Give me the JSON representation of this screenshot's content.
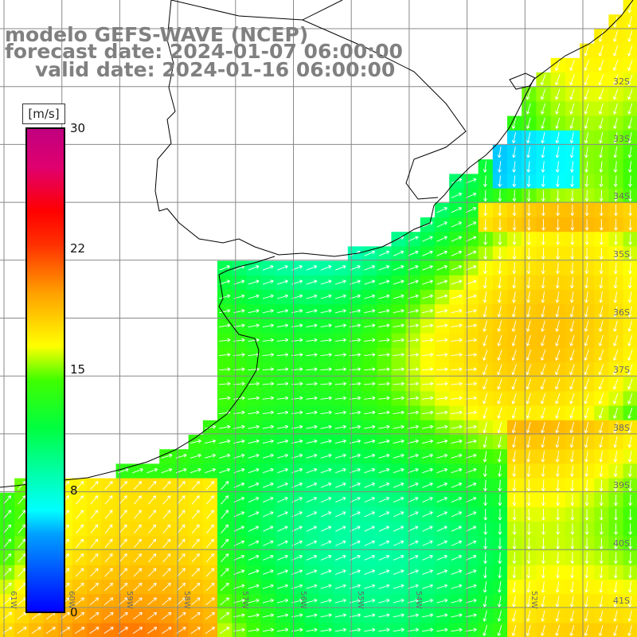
{
  "title": {
    "line1": "modelo GEFS-WAVE (NCEP)",
    "line2": "forecast date: 2024-01-07 06:00:00",
    "line3": "valid date: 2024-01-16 06:00:00"
  },
  "colorbar": {
    "unit": "[m/s]",
    "ticks": [
      "30",
      "22",
      "15",
      "8",
      "0"
    ],
    "tick_values": [
      30,
      22,
      15,
      8,
      0
    ],
    "colors": [
      "#0000ff",
      "#00a0ff",
      "#00ffff",
      "#00ff40",
      "#40ff00",
      "#ffff00",
      "#ffa000",
      "#ff3000",
      "#ff0000",
      "#e0006e",
      "#c00080"
    ]
  },
  "axes": {
    "lat_labels": [
      "32S",
      "33S",
      "34S",
      "35S",
      "36S",
      "37S",
      "38S",
      "39S",
      "40S",
      "41S"
    ],
    "lon_labels": [
      "61W",
      "60W",
      "59W",
      "58W",
      "57W",
      "56W",
      "55W",
      "54W",
      "53W",
      "52W"
    ],
    "lon_range": [
      -62,
      -51
    ],
    "lat_range": [
      -41.5,
      -31
    ]
  },
  "colors": {
    "grid": "#888888",
    "land": "#ffffff",
    "coast": "#000000",
    "arrow": "#ffffff",
    "title": "#808080"
  }
}
